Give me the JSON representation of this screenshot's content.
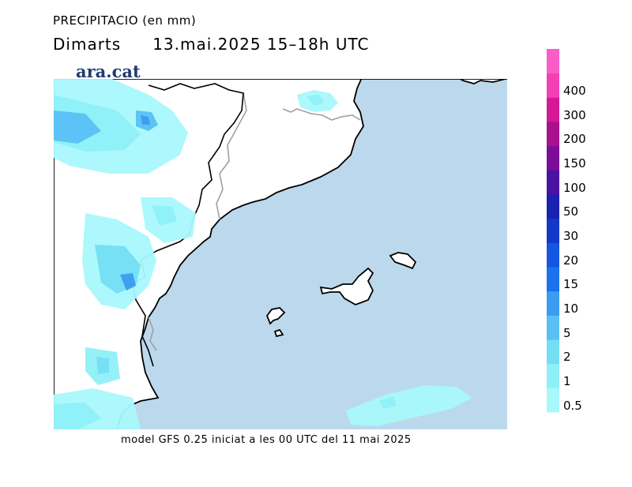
{
  "header": {
    "title": "PRECIPITACIO (en mm)",
    "day": "Dimarts",
    "datetime": "13.mai.2025 15–18h UTC"
  },
  "logo": {
    "text": "ara.cat"
  },
  "footer": {
    "text": "model GFS 0.25 iniciat a les 00 UTC del 11 mai 2025"
  },
  "legend": {
    "levels": [
      "0.5",
      "1",
      "2",
      "5",
      "10",
      "15",
      "20",
      "30",
      "50",
      "100",
      "150",
      "200",
      "300",
      "400"
    ],
    "colors": [
      "#a8f8fc",
      "#8ef0f8",
      "#74def4",
      "#58c0f4",
      "#3c9cf0",
      "#1a72ec",
      "#1456e0",
      "#1238c8",
      "#1a20b0",
      "#4a12a0",
      "#7a0e98",
      "#a8108c",
      "#d41896",
      "#f040b4",
      "#fa5cc8"
    ]
  },
  "map": {
    "sea_color": "#bcd8ec",
    "land_color": "#ffffff",
    "coast_color": "#000000",
    "border_color": "#a0a0a0"
  }
}
